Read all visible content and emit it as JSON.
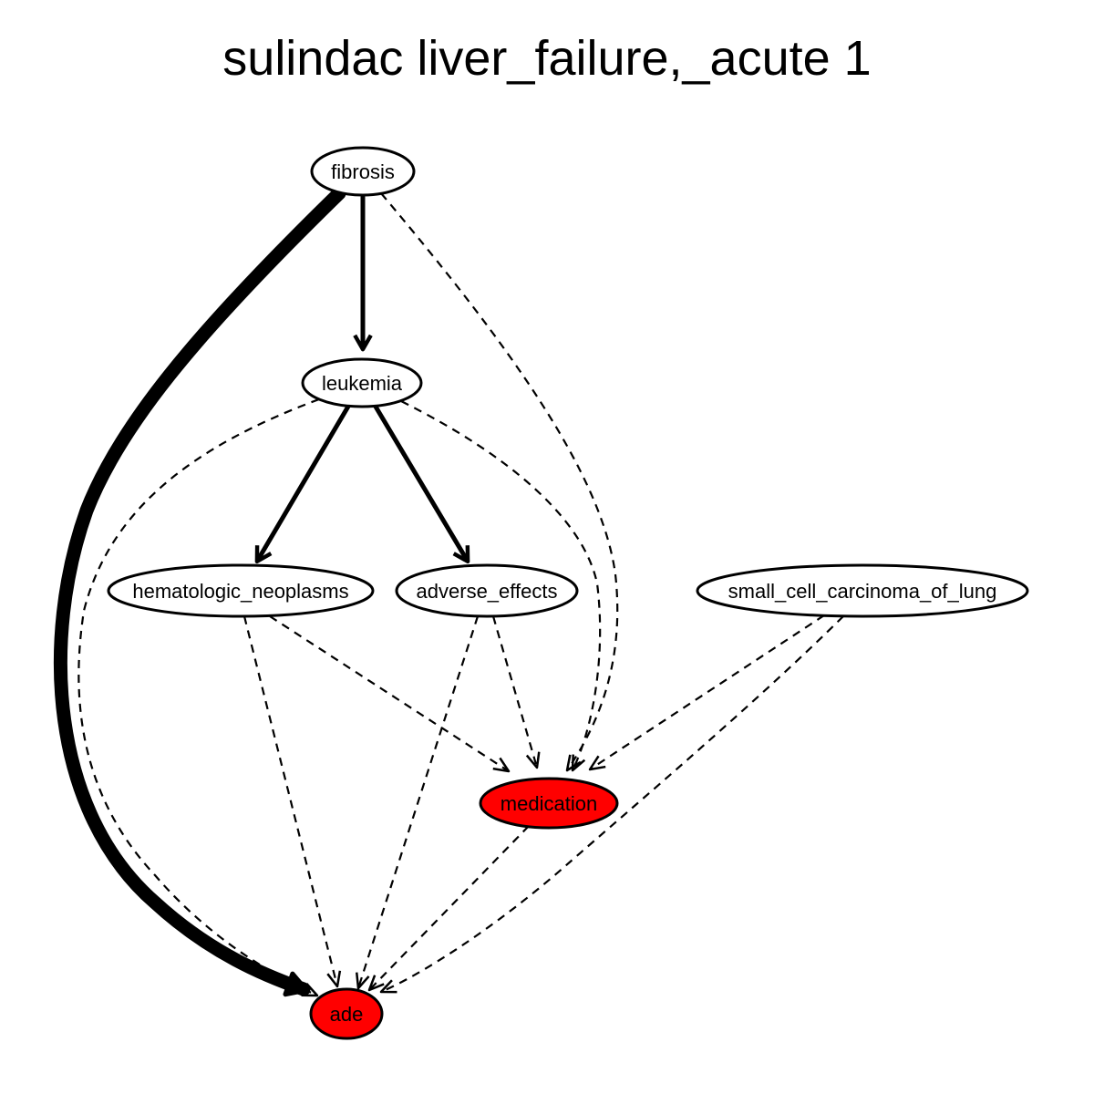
{
  "title": "sulindac liver_failure,_acute 1",
  "colors": {
    "highlight": "#ff0000",
    "default_fill": "#ffffff",
    "stroke": "#000000"
  },
  "nodes": [
    {
      "id": "fibrosis",
      "label": "fibrosis",
      "highlighted": false
    },
    {
      "id": "leukemia",
      "label": "leukemia",
      "highlighted": false
    },
    {
      "id": "hematologic_neoplasms",
      "label": "hematologic_neoplasms",
      "highlighted": false
    },
    {
      "id": "adverse_effects",
      "label": "adverse_effects",
      "highlighted": false
    },
    {
      "id": "small_cell_carcinoma_of_lung",
      "label": "small_cell_carcinoma_of_lung",
      "highlighted": false
    },
    {
      "id": "medication",
      "label": "medication",
      "highlighted": true
    },
    {
      "id": "ade",
      "label": "ade",
      "highlighted": true
    }
  ],
  "edges": [
    {
      "from": "fibrosis",
      "to": "ade",
      "style": "solid",
      "weight": 5
    },
    {
      "from": "fibrosis",
      "to": "leukemia",
      "style": "solid",
      "weight": 2
    },
    {
      "from": "fibrosis",
      "to": "medication",
      "style": "dashed",
      "weight": 1
    },
    {
      "from": "leukemia",
      "to": "hematologic_neoplasms",
      "style": "solid",
      "weight": 2
    },
    {
      "from": "leukemia",
      "to": "adverse_effects",
      "style": "solid",
      "weight": 2
    },
    {
      "from": "leukemia",
      "to": "ade",
      "style": "dashed",
      "weight": 1
    },
    {
      "from": "leukemia",
      "to": "medication",
      "style": "dashed",
      "weight": 1
    },
    {
      "from": "hematologic_neoplasms",
      "to": "medication",
      "style": "dashed",
      "weight": 1
    },
    {
      "from": "hematologic_neoplasms",
      "to": "ade",
      "style": "dashed",
      "weight": 1
    },
    {
      "from": "adverse_effects",
      "to": "medication",
      "style": "dashed",
      "weight": 1
    },
    {
      "from": "adverse_effects",
      "to": "ade",
      "style": "dashed",
      "weight": 1
    },
    {
      "from": "small_cell_carcinoma_of_lung",
      "to": "medication",
      "style": "dashed",
      "weight": 1
    },
    {
      "from": "small_cell_carcinoma_of_lung",
      "to": "ade",
      "style": "dashed",
      "weight": 1
    },
    {
      "from": "medication",
      "to": "ade",
      "style": "dashed",
      "weight": 1
    }
  ]
}
